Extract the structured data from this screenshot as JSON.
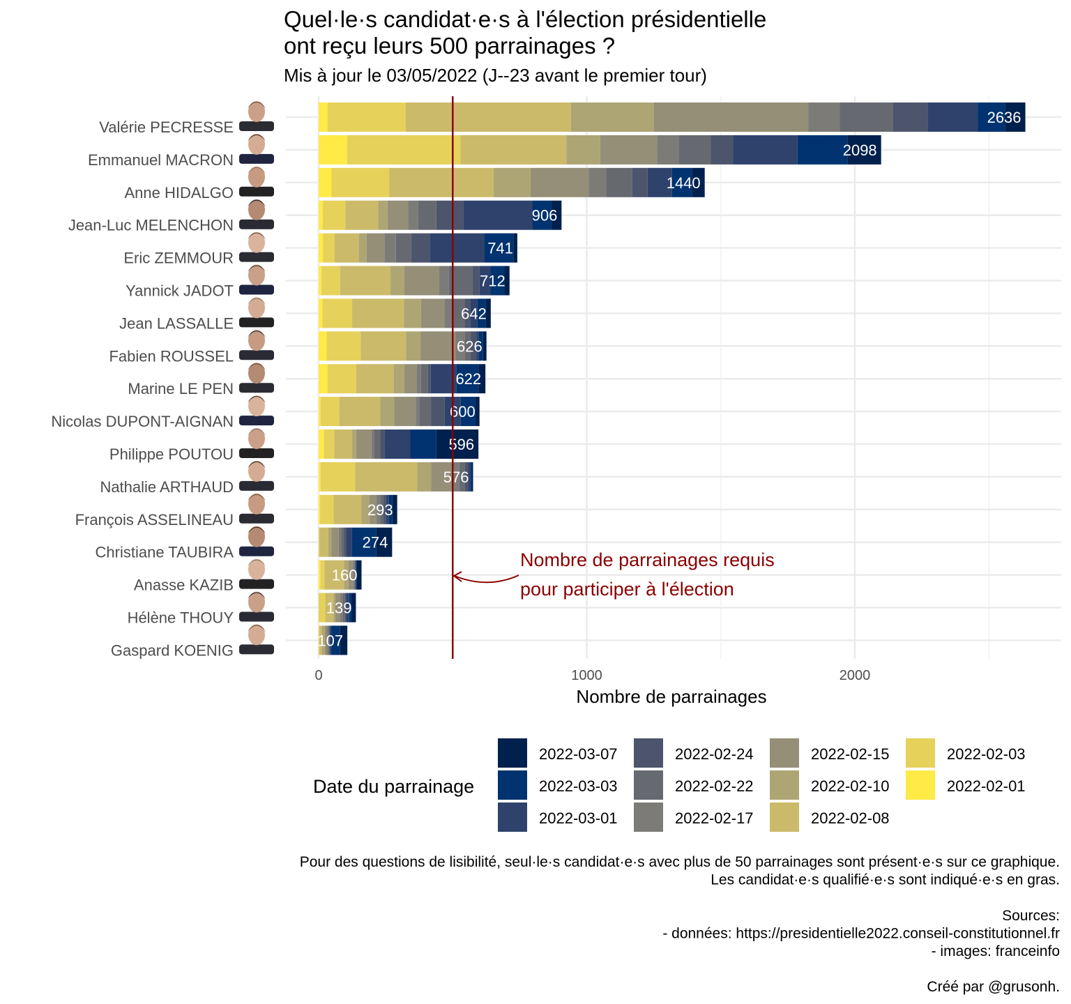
{
  "chart_data": {
    "type": "bar",
    "orientation": "horizontal",
    "stacked": true,
    "title_lines": [
      "Quel·le·s candidat·e·s à l'élection présidentielle",
      "ont reçu leurs 500 parrainages ?"
    ],
    "subtitle": "Mis à jour le 03/05/2022 (J--23 avant le premier tour)",
    "xlabel": "Nombre de parrainages",
    "ylabel": "",
    "xlim": [
      0,
      2760
    ],
    "x_ticks": [
      0,
      1000,
      2000
    ],
    "grid": true,
    "threshold": 500,
    "annotation_lines": [
      "Nombre de parrainages requis",
      "pour participer à l'élection"
    ],
    "legend": {
      "title": "Date du parrainage",
      "placement": "bottom",
      "items": [
        {
          "label": "2022-03-07",
          "color": "#00204d"
        },
        {
          "label": "2022-03-03",
          "color": "#00336f"
        },
        {
          "label": "2022-03-01",
          "color": "#2e426c"
        },
        {
          "label": "2022-02-24",
          "color": "#4c556c"
        },
        {
          "label": "2022-02-22",
          "color": "#666970"
        },
        {
          "label": "2022-02-17",
          "color": "#7c7b78"
        },
        {
          "label": "2022-02-15",
          "color": "#958f78"
        },
        {
          "label": "2022-02-10",
          "color": "#aea575"
        },
        {
          "label": "2022-02-08",
          "color": "#cbba69"
        },
        {
          "label": "2022-02-03",
          "color": "#e6d15b"
        },
        {
          "label": "2022-02-01",
          "color": "#ffea46"
        }
      ]
    },
    "series_order_left_to_right": [
      "2022-02-01",
      "2022-02-03",
      "2022-02-08",
      "2022-02-10",
      "2022-02-15",
      "2022-02-17",
      "2022-02-22",
      "2022-02-24",
      "2022-03-01",
      "2022-03-03",
      "2022-03-07"
    ],
    "candidates": [
      {
        "name": "Valérie PECRESSE",
        "total": 2636,
        "cumulative": [
          33,
          325,
          941,
          1250,
          1827,
          1944,
          2143,
          2271,
          2458,
          2560,
          2636
        ]
      },
      {
        "name": "Emmanuel MACRON",
        "total": 2098,
        "cumulative": [
          106,
          529,
          924,
          1050,
          1262,
          1343,
          1463,
          1546,
          1786,
          1972,
          2098
        ]
      },
      {
        "name": "Anne HIDALGO",
        "total": 1440,
        "cumulative": [
          48,
          264,
          652,
          790,
          1007,
          1073,
          1170,
          1227,
          1318,
          1393,
          1440
        ]
      },
      {
        "name": "Jean-Luc MELENCHON",
        "total": 906,
        "cumulative": [
          15,
          100,
          222,
          257,
          334,
          371,
          439,
          539,
          797,
          870,
          906
        ]
      },
      {
        "name": "Eric ZEMMOUR",
        "total": 741,
        "cumulative": [
          16,
          59,
          150,
          179,
          246,
          288,
          345,
          414,
          619,
          726,
          741
        ]
      },
      {
        "name": "Yannick JADOT",
        "total": 712,
        "cumulative": [
          10,
          80,
          268,
          320,
          450,
          486,
          573,
          600,
          640,
          692,
          712
        ]
      },
      {
        "name": "Jean LASSALLE",
        "total": 642,
        "cumulative": [
          14,
          125,
          318,
          382,
          469,
          500,
          545,
          565,
          592,
          622,
          642
        ]
      },
      {
        "name": "Fabien ROUSSEL",
        "total": 626,
        "cumulative": [
          30,
          157,
          326,
          380,
          510,
          546,
          566,
          588,
          598,
          613,
          626
        ]
      },
      {
        "name": "Marine LE PEN",
        "total": 622,
        "cumulative": [
          33,
          140,
          280,
          320,
          365,
          382,
          408,
          418,
          514,
          596,
          622
        ]
      },
      {
        "name": "Nicolas DUPONT-AIGNAN",
        "total": 600,
        "cumulative": [
          7,
          77,
          230,
          282,
          362,
          376,
          420,
          470,
          530,
          585,
          600
        ]
      },
      {
        "name": "Philippe POUTOU",
        "total": 596,
        "cumulative": [
          20,
          58,
          125,
          140,
          197,
          208,
          230,
          246,
          342,
          439,
          596
        ]
      },
      {
        "name": "Nathalie ARTHAUD",
        "total": 576,
        "cumulative": [
          7,
          136,
          368,
          420,
          498,
          525,
          546,
          558,
          566,
          572,
          576
        ]
      },
      {
        "name": "François ASSELINEAU",
        "total": 293,
        "cumulative": [
          5,
          56,
          160,
          190,
          216,
          230,
          242,
          252,
          262,
          275,
          293
        ]
      },
      {
        "name": "Christiane TAUBIRA",
        "total": 274,
        "cumulative": [
          0,
          3,
          36,
          48,
          75,
          84,
          94,
          104,
          124,
          215,
          274
        ]
      },
      {
        "name": "Anasse KAZIB",
        "total": 160,
        "cumulative": [
          6,
          22,
          95,
          111,
          128,
          133,
          135,
          137,
          140,
          142,
          160
        ]
      },
      {
        "name": "Hélène THOUY",
        "total": 139,
        "cumulative": [
          0,
          25,
          55,
          62,
          79,
          90,
          98,
          104,
          114,
          122,
          139
        ]
      },
      {
        "name": "Gaspard KOENIG",
        "total": 107,
        "cumulative": [
          0,
          3,
          13,
          23,
          30,
          36,
          40,
          43,
          47,
          80,
          107
        ]
      }
    ]
  },
  "caption_lines": [
    "Pour des questions de lisibilité, seul·le·s candidat·e·s avec plus de 50 parrainages sont présent·e·s sur ce graphique.",
    "Les candidat·e·s qualifié·e·s sont indiqué·e·s en gras.",
    "",
    "Sources:",
    "- données: https://presidentielle2022.conseil-constitutionnel.fr",
    "- images: franceinfo",
    "",
    "Créé par @grusonh."
  ],
  "annotation_color": "#8b0000"
}
